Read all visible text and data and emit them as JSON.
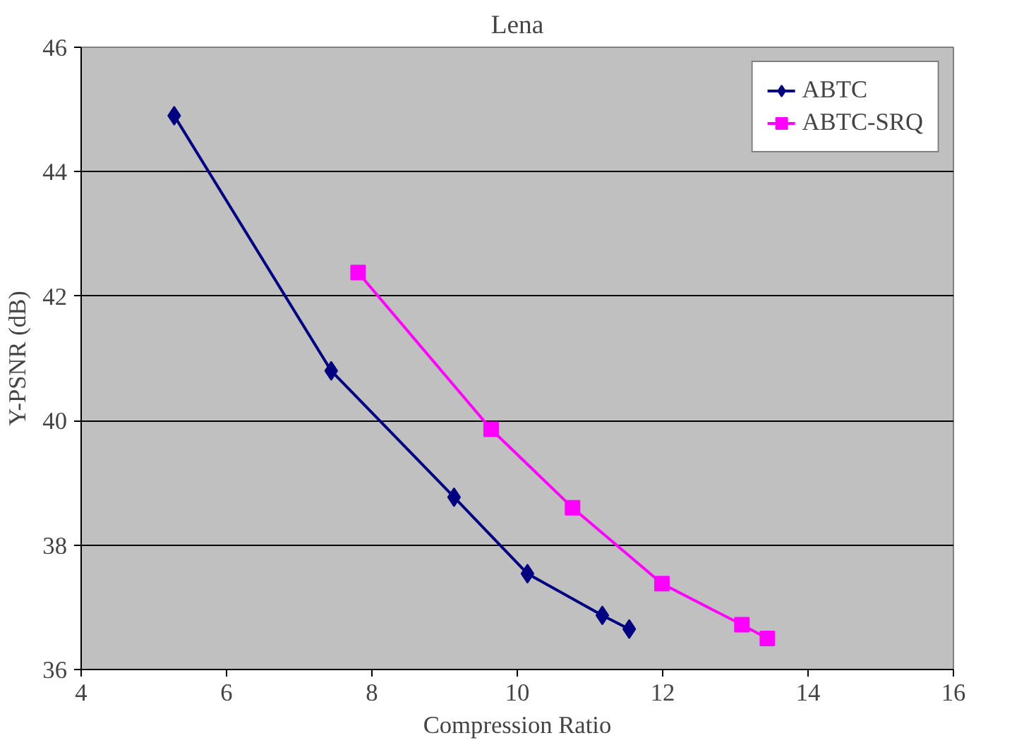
{
  "chart_data": {
    "type": "line",
    "title": "Lena",
    "xlabel": "Compression Ratio",
    "ylabel": "Y-PSNR (dB)",
    "xlim": [
      4,
      16
    ],
    "xticks": [
      4,
      6,
      8,
      10,
      12,
      14,
      16
    ],
    "ylim": [
      36,
      46
    ],
    "yticks": [
      36,
      38,
      40,
      42,
      44,
      46
    ],
    "grid": "y",
    "legend": "top right",
    "line_style": "solid",
    "series": [
      {
        "name": "ABTC",
        "color": "#000080",
        "marker": "diamond",
        "x": [
          5.28,
          7.44,
          9.13,
          10.14,
          11.17,
          11.54
        ],
        "values": [
          44.9,
          40.8,
          38.77,
          37.54,
          36.87,
          36.65
        ]
      },
      {
        "name": "ABTC-SRQ",
        "color": "#ff00ff",
        "marker": "square",
        "x": [
          7.81,
          9.64,
          10.76,
          11.99,
          13.09,
          13.44
        ],
        "values": [
          42.38,
          39.86,
          38.6,
          37.38,
          36.72,
          36.5
        ]
      }
    ]
  }
}
